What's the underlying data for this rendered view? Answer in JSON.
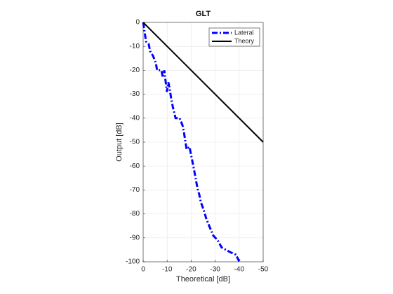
{
  "chart_data": {
    "type": "line",
    "title": "GLT",
    "xlabel": "Theoretical [dB]",
    "ylabel": "Output [dB]",
    "xlim": [
      0,
      -50
    ],
    "ylim": [
      -100,
      0
    ],
    "xticks": [
      0,
      -10,
      -20,
      -30,
      -40,
      -50
    ],
    "yticks": [
      -100,
      -90,
      -80,
      -70,
      -60,
      -50,
      -40,
      -30,
      -20,
      -10,
      0
    ],
    "grid": true,
    "legend": "northeast",
    "series": [
      {
        "name": "Lateral",
        "color": "#0000ff",
        "linestyle": "-.",
        "x": [
          0,
          -1.2,
          -2.3,
          -2.9,
          -4.1,
          -5.3,
          -5.8,
          -7.6,
          -8.2,
          -8.8,
          -9.4,
          -9.9,
          -10.5,
          -11.1,
          -11.7,
          -12.3,
          -13.5,
          -15.2,
          -16.4,
          -17,
          -18.1,
          -19.3,
          -19.9,
          -21.1,
          -22.2,
          -22.8,
          -23.4,
          -24,
          -25.1,
          -25.7,
          -26.3,
          -27.5,
          -29.2,
          -31,
          -32.7,
          -34.5,
          -36.3,
          -38.6,
          -39.8,
          -40.4
        ],
        "values": [
          0,
          -8,
          -9,
          -12,
          -14,
          -17,
          -20,
          -20,
          -23,
          -20,
          -25,
          -29,
          -25,
          -28,
          -32,
          -35,
          -40,
          -40,
          -43,
          -46,
          -53,
          -52,
          -55,
          -61,
          -67,
          -70,
          -72,
          -75,
          -78,
          -80,
          -82,
          -85,
          -89,
          -91,
          -94,
          -95,
          -96,
          -97,
          -99.4,
          -99
        ]
      },
      {
        "name": "Theory",
        "color": "#000000",
        "linestyle": "-",
        "x": [
          0,
          -50
        ],
        "values": [
          0,
          -50
        ]
      }
    ]
  }
}
